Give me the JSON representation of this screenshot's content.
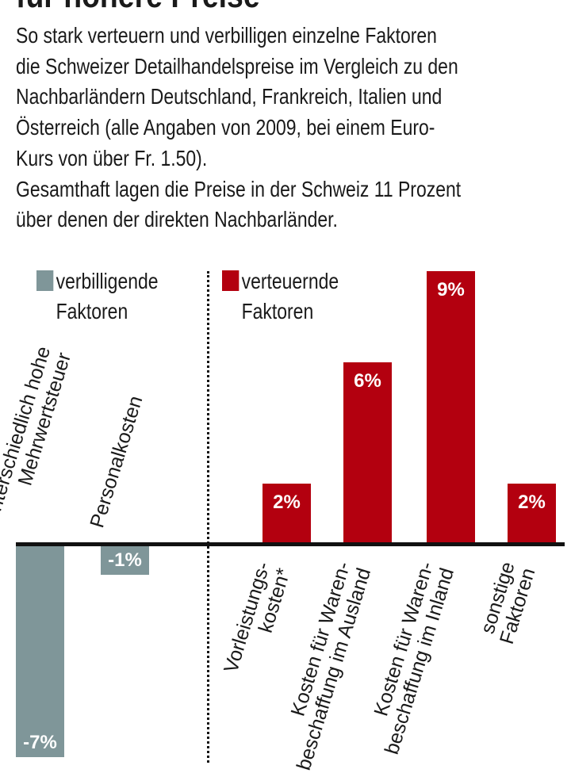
{
  "title": "für höhere Preise",
  "intro": [
    "So stark verteuern und verbilligen einzelne Faktoren",
    "die Schweizer Detailhandelspreise im Vergleich zu den",
    "Nachbarländern Deutschland, Frankreich, Italien und",
    "Österreich (alle Angaben von 2009, bei einem Euro-",
    "Kurs von über Fr. 1.50).",
    "Gesamthaft lagen die Preise in der Schweiz 11 Prozent",
    "über denen der direkten Nachbarländer."
  ],
  "colors": {
    "decrease": "#7f9699",
    "increase": "#b3000f"
  },
  "chart_data": {
    "type": "bar",
    "legend": [
      {
        "label_line1": "verbilligende",
        "label_line2": "Faktoren",
        "color": "#7f9699"
      },
      {
        "label_line1": "verteuernde",
        "label_line2": "Faktoren",
        "color": "#b3000f"
      }
    ],
    "categories": [
      [
        "unterschiedlich hohe",
        "Mehrwertsteuer"
      ],
      [
        "Personalkosten"
      ],
      [
        "Vorleistungs-",
        "kosten*"
      ],
      [
        "Kosten für Waren-",
        "beschaffung im Ausland"
      ],
      [
        "Kosten für Waren-",
        "beschaffung im Inland"
      ],
      [
        "sonstige",
        "Faktoren"
      ]
    ],
    "values": [
      -7,
      -1,
      2,
      6,
      9,
      2
    ],
    "data_labels": [
      "-7%",
      "-1%",
      "2%",
      "6%",
      "9%",
      "2%"
    ],
    "unit": "%"
  }
}
